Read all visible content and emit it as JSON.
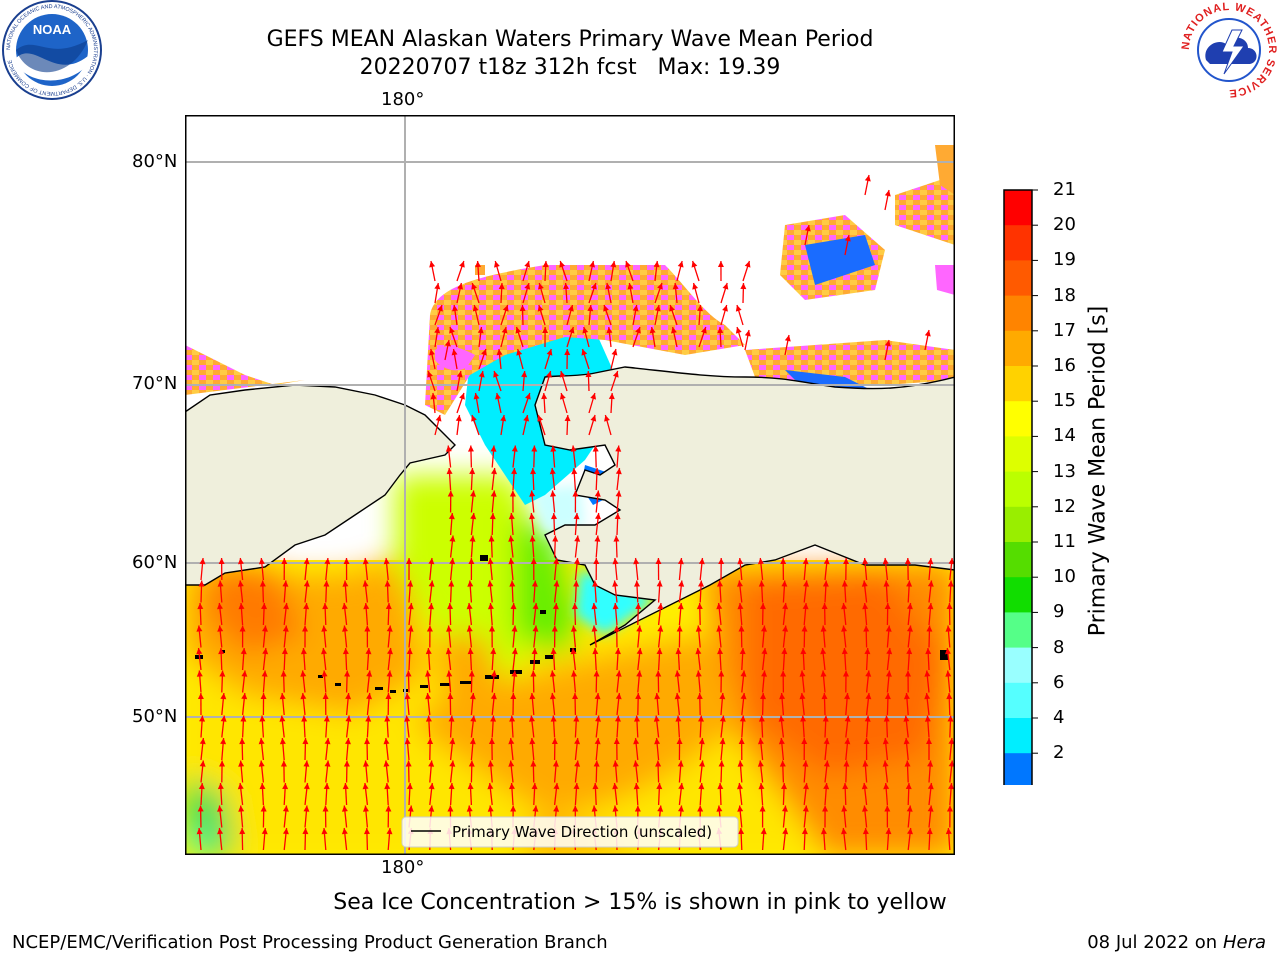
{
  "title": {
    "line1": "GEFS MEAN Alaskan Waters Primary Wave Mean Period",
    "line2": "20220707 t18z 312h fcst   Max: 19.39"
  },
  "map": {
    "lon_label_top": "180°",
    "lon_label_bottom": "180°",
    "lat_labels": [
      "80°N",
      "70°N",
      "60°N",
      "50°N"
    ],
    "legend": "Primary Wave Direction (unscaled)"
  },
  "colorbar": {
    "label": "Primary Wave Mean Period [s]",
    "ticks": [
      "21",
      "20",
      "19",
      "18",
      "17",
      "16",
      "15",
      "14",
      "13",
      "12",
      "11",
      "10",
      "9",
      "8",
      "6",
      "4",
      "2"
    ],
    "colors": [
      "#ff0000",
      "#ff3300",
      "#ff5a00",
      "#ff8400",
      "#ffaa00",
      "#ffd200",
      "#ffff00",
      "#ddff00",
      "#bbff00",
      "#99ee00",
      "#55dd00",
      "#11dd00",
      "#55ff88",
      "#99ffff",
      "#55ffff",
      "#00eeff",
      "#0077ff"
    ],
    "under_color": "#0000ff"
  },
  "colors": {
    "land": "#efefdc",
    "ice_pink": "#ff66ff",
    "arrow": "#ff0000",
    "grid": "#b0b0b0"
  },
  "logos": {
    "noaa_text": "NOAA",
    "noaa_ring": "NATIONAL OCEANIC AND ATMOSPHERIC ADMINISTRATION · U.S. DEPARTMENT OF COMMERCE",
    "nws_ring": "NATIONAL WEATHER SERVICE"
  },
  "caption": "Sea Ice Concentration > 15% is shown in pink to yellow",
  "footer": {
    "left": "NCEP/EMC/Verification Post Processing Product Generation Branch",
    "right_prefix": "08 Jul 2022 on ",
    "right_machine": "Hera"
  }
}
